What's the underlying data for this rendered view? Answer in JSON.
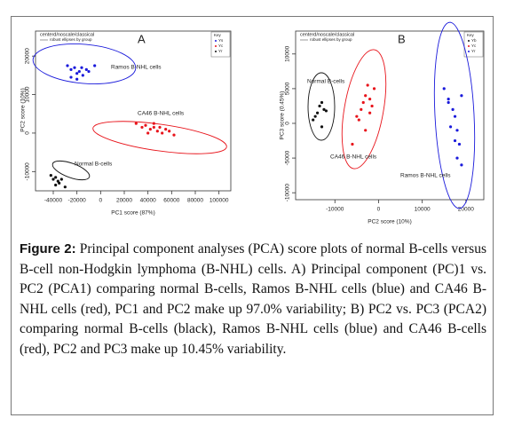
{
  "chart_data": [
    {
      "type": "scatter",
      "panel": "A",
      "title": "centerd/noscale/classical",
      "subtitle": "robust ellipses by group",
      "x_label": "PC1 score (87%)",
      "y_label": "PC2 score (10%)",
      "legend_title": "Key",
      "xlim": [
        -55000,
        110000
      ],
      "ylim": [
        -15000,
        26500
      ],
      "xticks": [
        -40000,
        -20000,
        0,
        20000,
        40000,
        60000,
        80000,
        100000
      ],
      "yticks": [
        -10000,
        0,
        10000,
        20000
      ],
      "annotations": [
        "Ramos B-NHL cells",
        "CA46 B-NHL cells",
        "Normal B-cells"
      ],
      "series": [
        {
          "name": "Ys",
          "color": "#1a1adb",
          "x": [
            -28000,
            -25000,
            -22000,
            -20000,
            -18000,
            -15000,
            -12000,
            -20000,
            -25000,
            -16000,
            -5000,
            -10000
          ],
          "y": [
            17500,
            16500,
            17000,
            15500,
            16000,
            15000,
            16500,
            14000,
            14500,
            17000,
            17500,
            16000
          ]
        },
        {
          "name": "Yc",
          "color": "#e8141b",
          "x": [
            30000,
            35000,
            38000,
            42000,
            45000,
            48000,
            50000,
            52000,
            55000,
            58000,
            62000,
            45000,
            40000
          ],
          "y": [
            2500,
            1500,
            2000,
            1000,
            1500,
            500,
            1500,
            0,
            1000,
            500,
            -500,
            2500,
            0
          ]
        },
        {
          "name": "Yr",
          "color": "#111111",
          "x": [
            -42000,
            -40000,
            -38000,
            -36000,
            -35000,
            -33000,
            -38000,
            -30000
          ],
          "y": [
            -11000,
            -12000,
            -11500,
            -12500,
            -13000,
            -12000,
            -13500,
            -14000
          ]
        }
      ]
    },
    {
      "type": "scatter",
      "panel": "B",
      "title": "centerd/noscale/classical",
      "subtitle": "robust ellipses by group",
      "x_label": "PC2 score (10%)",
      "y_label": "PC3 score (0.45%)",
      "legend_title": "Key",
      "xlim": [
        -19000,
        24100
      ],
      "ylim": [
        -11000,
        13300
      ],
      "xticks": [
        -10000,
        0,
        10000,
        20000
      ],
      "yticks": [
        -10000,
        -5000,
        0,
        5000,
        10000
      ],
      "annotations": [
        "Normal B-cells",
        "CA46 B-NHL cells",
        "Ramos B-NHL cells"
      ],
      "series": [
        {
          "name": "Yb",
          "color": "#111111",
          "x": [
            -15000,
            -14000,
            -13500,
            -13000,
            -12500,
            -14500,
            -13000,
            -12000
          ],
          "y": [
            500,
            1500,
            2500,
            3000,
            2000,
            1000,
            -500,
            1800
          ]
        },
        {
          "name": "Yc",
          "color": "#e8141b",
          "x": [
            -6000,
            -5000,
            -4000,
            -3500,
            -3000,
            -2500,
            -2000,
            -1500,
            -1000,
            -4500,
            -3000,
            -2000
          ],
          "y": [
            -3000,
            1000,
            2000,
            3000,
            4000,
            5500,
            3500,
            2500,
            5000,
            500,
            -1000,
            1500
          ]
        },
        {
          "name": "Yr",
          "color": "#1a1adb",
          "x": [
            15000,
            16000,
            17000,
            17500,
            18000,
            18500,
            19000,
            16500,
            17500,
            18000,
            16000,
            19000
          ],
          "y": [
            5000,
            3500,
            2000,
            1000,
            -1000,
            -3000,
            4000,
            -500,
            -2500,
            -5000,
            3000,
            -6000
          ]
        }
      ]
    }
  ],
  "caption": {
    "label": "Figure 2:",
    "text": "Principal component analyses (PCA) score plots of normal B-cells versus B-cell non-Hodgkin lymphoma (B-NHL) cells. A) Principal component (PC)1 vs. PC2 (PCA1) comparing normal B-cells, Ramos B-NHL cells (blue) and CA46 B-NHL cells (red), PC1 and PC2 make up 97.0% variability; B) PC2 vs. PC3 (PCA2) comparing normal B-cells (black), Ramos B-NHL cells (blue) and CA46 B-cells (red), PC2 and PC3 make up 10.45% variability."
  }
}
